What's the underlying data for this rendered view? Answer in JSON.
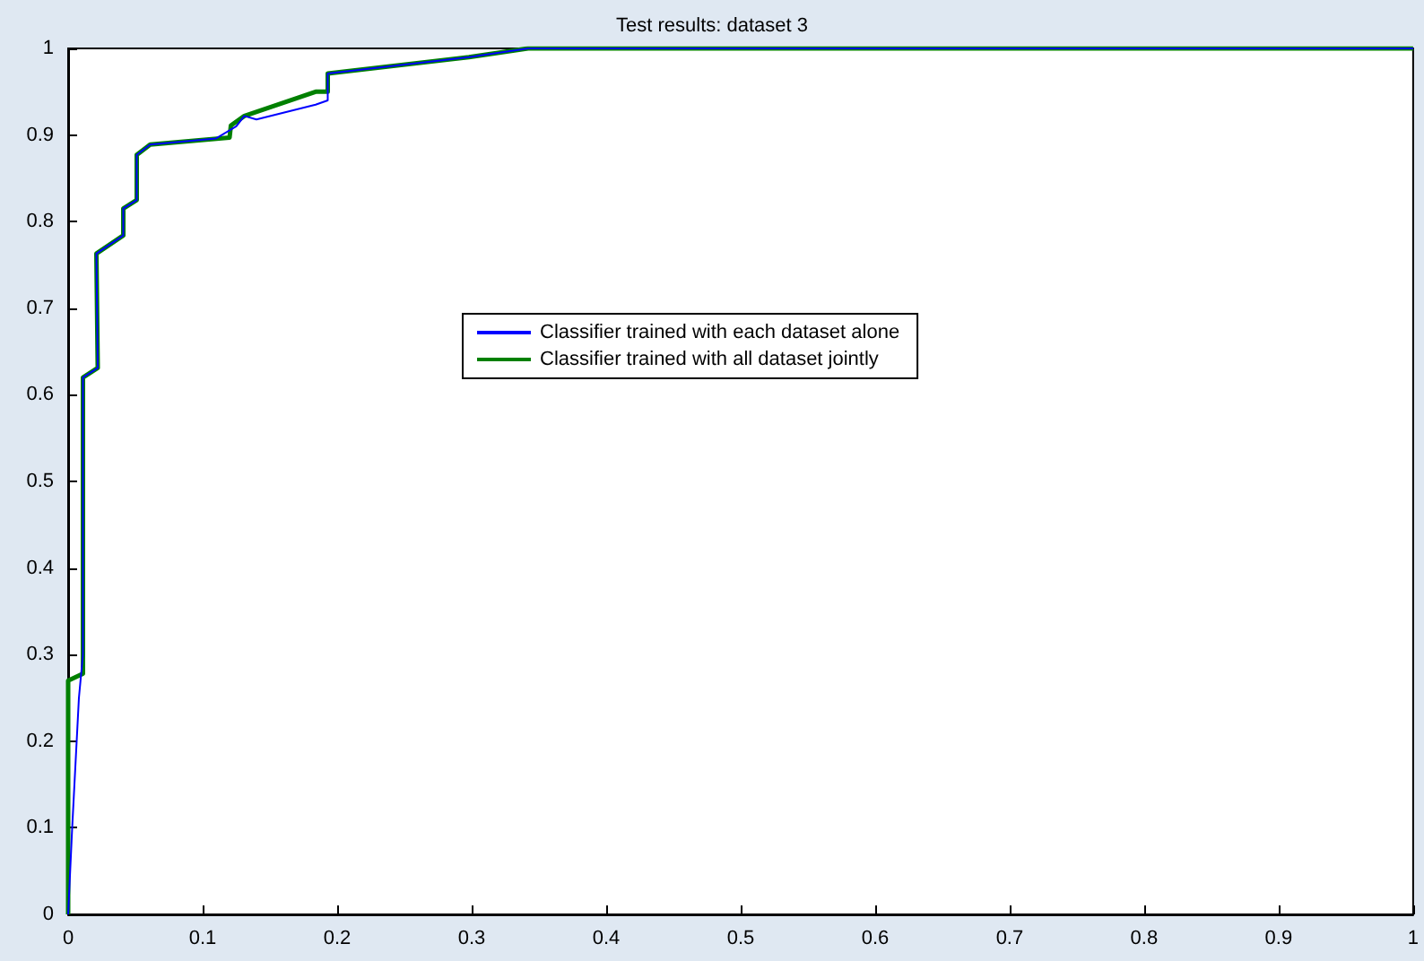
{
  "chart_data": {
    "type": "line",
    "title": "Test results: dataset 3",
    "xlim": [
      0,
      1
    ],
    "ylim": [
      0,
      1
    ],
    "xticks": [
      0,
      0.1,
      0.2,
      0.3,
      0.4,
      0.5,
      0.6,
      0.7,
      0.8,
      0.9,
      1
    ],
    "yticks": [
      0,
      0.1,
      0.2,
      0.3,
      0.4,
      0.5,
      0.6,
      0.7,
      0.8,
      0.9,
      1
    ],
    "grid": false,
    "legend": "center",
    "marker": "none",
    "series": [
      {
        "name": "Classifier trained with each dataset alone",
        "color": "#0000ff",
        "x": [
          0,
          0.003,
          0.008,
          0.011,
          0.011,
          0.022,
          0.021,
          0.041,
          0.041,
          0.051,
          0.051,
          0.061,
          0.11,
          0.125,
          0.131,
          0.14,
          0.184,
          0.193,
          0.193,
          0.298,
          0.342,
          1
        ],
        "values": [
          0,
          0.1,
          0.25,
          0.3,
          0.62,
          0.631,
          0.763,
          0.784,
          0.815,
          0.825,
          0.877,
          0.889,
          0.896,
          0.91,
          0.922,
          0.918,
          0.935,
          0.94,
          0.971,
          0.99,
          1,
          1
        ]
      },
      {
        "name": "Classifier trained with all dataset jointly",
        "color": "#008000",
        "x": [
          0,
          0,
          0.011,
          0.011,
          0.022,
          0.021,
          0.041,
          0.041,
          0.051,
          0.051,
          0.061,
          0.12,
          0.121,
          0.131,
          0.184,
          0.193,
          0.193,
          0.298,
          0.342,
          1
        ],
        "values": [
          0,
          0.27,
          0.278,
          0.62,
          0.631,
          0.763,
          0.784,
          0.815,
          0.825,
          0.877,
          0.889,
          0.897,
          0.911,
          0.922,
          0.95,
          0.95,
          0.971,
          0.99,
          1,
          1
        ]
      }
    ]
  }
}
